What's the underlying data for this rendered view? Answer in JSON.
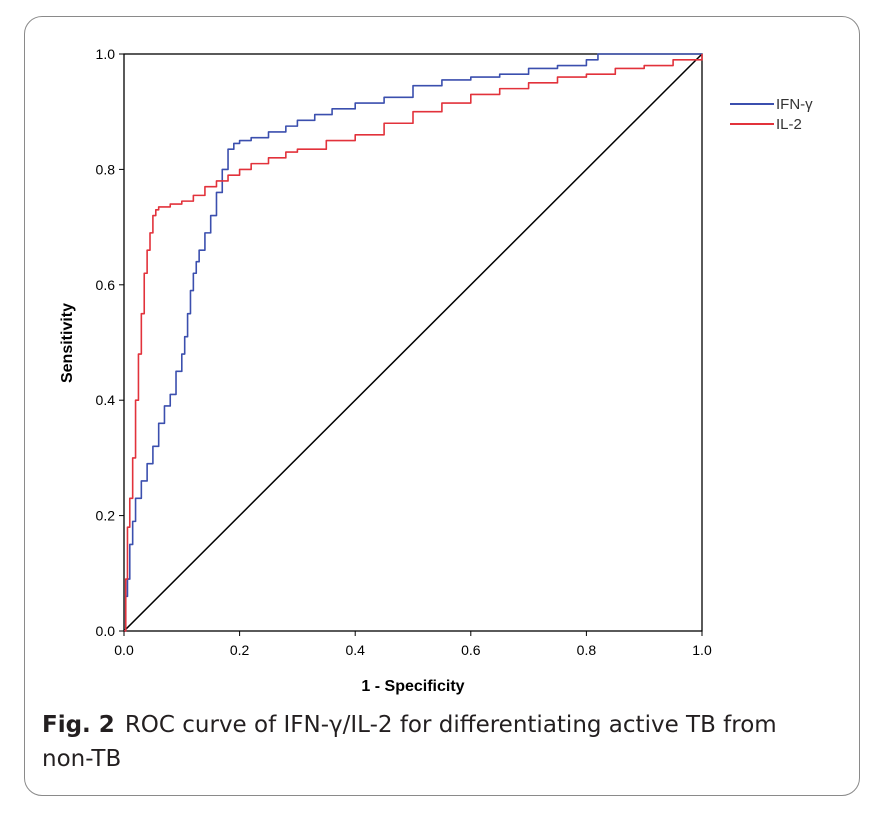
{
  "figure": {
    "label": "Fig. 2",
    "caption": "ROC curve of IFN-γ/IL-2 for differentiating active TB from non-TB"
  },
  "chart_data": {
    "type": "line",
    "title": "",
    "xlabel": "1 - Specificity",
    "ylabel": "Sensitivity",
    "xlim": [
      0,
      1
    ],
    "ylim": [
      0,
      1
    ],
    "xticks": [
      "0.0",
      "0.2",
      "0.4",
      "0.6",
      "0.8",
      "1.0"
    ],
    "yticks": [
      "0.0",
      "0.2",
      "0.4",
      "0.6",
      "0.8",
      "1.0"
    ],
    "grid": false,
    "legend_position": "right",
    "reference_line": {
      "x": [
        0,
        1
      ],
      "y": [
        0,
        1
      ],
      "color": "#000000"
    },
    "series": [
      {
        "name": "IFN-γ",
        "color": "#3b4fae",
        "x": [
          0,
          0.003,
          0.006,
          0.01,
          0.015,
          0.02,
          0.03,
          0.04,
          0.05,
          0.06,
          0.07,
          0.08,
          0.09,
          0.1,
          0.105,
          0.11,
          0.115,
          0.12,
          0.125,
          0.13,
          0.14,
          0.15,
          0.16,
          0.17,
          0.18,
          0.19,
          0.2,
          0.22,
          0.25,
          0.28,
          0.3,
          0.33,
          0.36,
          0.4,
          0.45,
          0.5,
          0.55,
          0.6,
          0.65,
          0.7,
          0.75,
          0.8,
          0.82,
          0.85,
          0.9,
          0.95,
          1.0
        ],
        "y": [
          0,
          0.06,
          0.09,
          0.15,
          0.19,
          0.23,
          0.26,
          0.29,
          0.32,
          0.36,
          0.39,
          0.41,
          0.45,
          0.48,
          0.51,
          0.55,
          0.59,
          0.62,
          0.64,
          0.66,
          0.69,
          0.72,
          0.76,
          0.8,
          0.835,
          0.845,
          0.85,
          0.855,
          0.865,
          0.875,
          0.885,
          0.895,
          0.905,
          0.915,
          0.925,
          0.945,
          0.955,
          0.96,
          0.965,
          0.975,
          0.98,
          0.99,
          1.0,
          1.0,
          1.0,
          1.0,
          1.0
        ]
      },
      {
        "name": "IL-2",
        "color": "#e2323b",
        "x": [
          0,
          0.003,
          0.006,
          0.01,
          0.015,
          0.02,
          0.025,
          0.03,
          0.035,
          0.04,
          0.045,
          0.05,
          0.055,
          0.06,
          0.08,
          0.1,
          0.12,
          0.14,
          0.16,
          0.18,
          0.2,
          0.22,
          0.25,
          0.28,
          0.3,
          0.35,
          0.4,
          0.45,
          0.5,
          0.55,
          0.6,
          0.65,
          0.7,
          0.75,
          0.8,
          0.85,
          0.9,
          0.95,
          1.0
        ],
        "y": [
          0,
          0.09,
          0.18,
          0.23,
          0.3,
          0.4,
          0.48,
          0.55,
          0.62,
          0.66,
          0.69,
          0.72,
          0.73,
          0.735,
          0.74,
          0.745,
          0.755,
          0.77,
          0.78,
          0.79,
          0.8,
          0.81,
          0.82,
          0.83,
          0.835,
          0.85,
          0.86,
          0.88,
          0.9,
          0.915,
          0.93,
          0.94,
          0.95,
          0.96,
          0.965,
          0.975,
          0.98,
          0.99,
          1.0
        ]
      }
    ]
  }
}
